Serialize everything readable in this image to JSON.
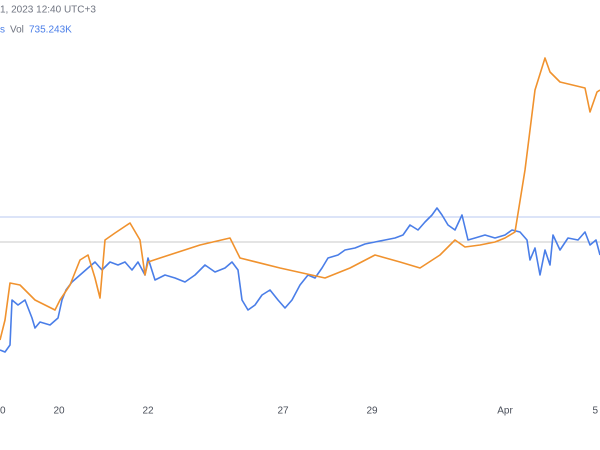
{
  "chart_data": {
    "type": "line",
    "header": {
      "time": "1, 2023 12:40 UTC+3",
      "series_tag": "s",
      "vol_label": "Vol",
      "vol_value": "735.243K"
    },
    "xlim": [
      0,
      600
    ],
    "ylim": [
      0,
      400
    ],
    "xticks": [
      {
        "value": 0,
        "label": "0"
      },
      {
        "value": 59,
        "label": "20"
      },
      {
        "value": 148,
        "label": "22"
      },
      {
        "value": 283,
        "label": "27"
      },
      {
        "value": 372,
        "label": "29"
      },
      {
        "value": 505,
        "label": "Apr"
      },
      {
        "value": 598,
        "label": "5"
      }
    ],
    "hlines": [
      {
        "value": 183,
        "color": "#b8c8f0"
      },
      {
        "value": 158,
        "color": "#c8c8c8"
      }
    ],
    "series": [
      {
        "color": "#4a7ee8",
        "x": [
          0,
          5,
          10,
          12,
          18,
          25,
          32,
          35,
          40,
          50,
          58,
          62,
          66,
          72,
          80,
          88,
          95,
          102,
          110,
          118,
          125,
          132,
          138,
          145,
          148,
          155,
          165,
          175,
          185,
          195,
          205,
          215,
          225,
          232,
          238,
          242,
          248,
          255,
          262,
          270,
          278,
          285,
          292,
          300,
          308,
          315,
          322,
          328,
          338,
          345,
          355,
          365,
          375,
          385,
          395,
          403,
          410,
          418,
          425,
          432,
          437,
          442,
          448,
          455,
          462,
          468,
          475,
          485,
          495,
          505,
          512,
          520,
          527,
          530,
          535,
          540,
          545,
          550,
          553,
          560,
          568,
          578,
          585,
          590,
          596,
          600
        ],
        "values": [
          50,
          48,
          55,
          100,
          95,
          100,
          82,
          72,
          78,
          75,
          82,
          100,
          110,
          118,
          125,
          132,
          138,
          130,
          138,
          135,
          138,
          130,
          138,
          125,
          142,
          120,
          125,
          122,
          118,
          125,
          135,
          128,
          132,
          138,
          130,
          100,
          90,
          95,
          105,
          110,
          100,
          92,
          100,
          115,
          125,
          122,
          132,
          142,
          145,
          150,
          152,
          156,
          158,
          160,
          162,
          165,
          175,
          170,
          178,
          185,
          192,
          185,
          175,
          170,
          185,
          160,
          162,
          165,
          162,
          165,
          170,
          168,
          160,
          140,
          152,
          125,
          150,
          135,
          165,
          150,
          162,
          160,
          168,
          155,
          160,
          145
        ]
      },
      {
        "color": "#f0922e",
        "x": [
          0,
          5,
          10,
          20,
          35,
          55,
          60,
          70,
          80,
          88,
          95,
          100,
          105,
          115,
          130,
          140,
          145,
          148,
          160,
          200,
          230,
          240,
          280,
          325,
          350,
          375,
          400,
          420,
          440,
          455,
          465,
          480,
          495,
          505,
          515,
          525,
          535,
          545,
          550,
          560,
          585,
          590,
          597,
          600
        ],
        "values": [
          60,
          80,
          117,
          115,
          100,
          90,
          100,
          115,
          140,
          145,
          122,
          102,
          160,
          167,
          177,
          160,
          125,
          138,
          142,
          155,
          162,
          142,
          132,
          122,
          132,
          145,
          138,
          132,
          145,
          160,
          153,
          155,
          158,
          162,
          168,
          230,
          310,
          342,
          328,
          318,
          312,
          288,
          308,
          310
        ]
      }
    ]
  }
}
